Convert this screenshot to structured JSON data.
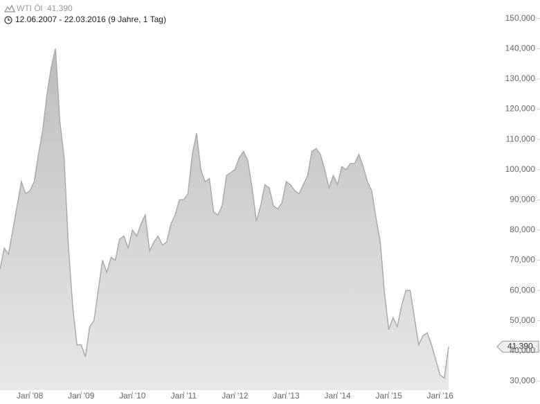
{
  "chart_data": {
    "type": "area",
    "title": "WTI Öl",
    "price_label": "41,390",
    "subtitle": "12.06.2007 - 22.03.2016 (9 Jahre, 1 Tag)",
    "x": [
      "2007-06",
      "2007-07",
      "2007-08",
      "2007-09",
      "2007-10",
      "2007-11",
      "2007-12",
      "2008-01",
      "2008-02",
      "2008-03",
      "2008-04",
      "2008-05",
      "2008-06",
      "2008-07",
      "2008-08",
      "2008-09",
      "2008-10",
      "2008-11",
      "2008-12",
      "2009-01",
      "2009-02",
      "2009-03",
      "2009-04",
      "2009-05",
      "2009-06",
      "2009-07",
      "2009-08",
      "2009-09",
      "2009-10",
      "2009-11",
      "2009-12",
      "2010-01",
      "2010-02",
      "2010-03",
      "2010-04",
      "2010-05",
      "2010-06",
      "2010-07",
      "2010-08",
      "2010-09",
      "2010-10",
      "2010-11",
      "2010-12",
      "2011-01",
      "2011-02",
      "2011-03",
      "2011-04",
      "2011-05",
      "2011-06",
      "2011-07",
      "2011-08",
      "2011-09",
      "2011-10",
      "2011-11",
      "2011-12",
      "2012-01",
      "2012-02",
      "2012-03",
      "2012-04",
      "2012-05",
      "2012-06",
      "2012-07",
      "2012-08",
      "2012-09",
      "2012-10",
      "2012-11",
      "2012-12",
      "2013-01",
      "2013-02",
      "2013-03",
      "2013-04",
      "2013-05",
      "2013-06",
      "2013-07",
      "2013-08",
      "2013-09",
      "2013-10",
      "2013-11",
      "2013-12",
      "2014-01",
      "2014-02",
      "2014-03",
      "2014-04",
      "2014-05",
      "2014-06",
      "2014-07",
      "2014-08",
      "2014-09",
      "2014-10",
      "2014-11",
      "2014-12",
      "2015-01",
      "2015-02",
      "2015-03",
      "2015-04",
      "2015-05",
      "2015-06",
      "2015-07",
      "2015-08",
      "2015-09",
      "2015-10",
      "2015-11",
      "2015-12",
      "2016-01",
      "2016-02",
      "2016-03"
    ],
    "series": [
      {
        "name": "WTI Öl",
        "color": "#a9a9a7",
        "values": [
          67000,
          74000,
          72000,
          80000,
          88000,
          96000,
          92000,
          93000,
          96000,
          105000,
          113000,
          125000,
          134000,
          140000,
          116000,
          104000,
          75000,
          55000,
          42000,
          42000,
          38000,
          48000,
          50000,
          60000,
          70000,
          66000,
          71000,
          70000,
          77000,
          78000,
          74000,
          80000,
          78000,
          82000,
          85000,
          73000,
          76000,
          78000,
          75000,
          76000,
          82000,
          85000,
          90000,
          90000,
          92000,
          105000,
          112000,
          100000,
          96000,
          97000,
          86000,
          85000,
          88000,
          98000,
          99000,
          100000,
          104000,
          106000,
          103000,
          94000,
          83000,
          88000,
          95000,
          94000,
          88000,
          87000,
          89000,
          96000,
          95000,
          93000,
          92000,
          95000,
          98000,
          106000,
          107000,
          105000,
          100000,
          94000,
          98000,
          95000,
          101000,
          100000,
          102000,
          102000,
          105000,
          101000,
          96000,
          93000,
          84000,
          76000,
          59000,
          47000,
          51000,
          48000,
          55000,
          60000,
          60000,
          51000,
          42000,
          45000,
          46000,
          42000,
          37000,
          32000,
          31000,
          41390
        ]
      }
    ],
    "xlim": [
      "2007-06",
      "2016-03"
    ],
    "xticks": [
      {
        "value": "2008-01",
        "label": "Jan '08"
      },
      {
        "value": "2009-01",
        "label": "Jan '09"
      },
      {
        "value": "2010-01",
        "label": "Jan '10"
      },
      {
        "value": "2011-01",
        "label": "Jan '11"
      },
      {
        "value": "2012-01",
        "label": "Jan '12"
      },
      {
        "value": "2013-01",
        "label": "Jan '13"
      },
      {
        "value": "2014-01",
        "label": "Jan '14"
      },
      {
        "value": "2015-01",
        "label": "Jan '15"
      },
      {
        "value": "2016-01",
        "label": "Jan '16"
      }
    ],
    "ylim": [
      27000,
      152000
    ],
    "yticks": [
      {
        "value": 30000,
        "label": "30,000"
      },
      {
        "value": 40000,
        "label": "40,000"
      },
      {
        "value": 50000,
        "label": "50,000"
      },
      {
        "value": 60000,
        "label": "60,000"
      },
      {
        "value": 70000,
        "label": "70,000"
      },
      {
        "value": 80000,
        "label": "80,000"
      },
      {
        "value": 90000,
        "label": "90,000"
      },
      {
        "value": 100000,
        "label": "100,000"
      },
      {
        "value": 110000,
        "label": "110,000"
      },
      {
        "value": 120000,
        "label": "120,000"
      },
      {
        "value": 130000,
        "label": "130,000"
      },
      {
        "value": 140000,
        "label": "140,000"
      },
      {
        "value": 150000,
        "label": "150,000"
      }
    ],
    "grid": false
  }
}
